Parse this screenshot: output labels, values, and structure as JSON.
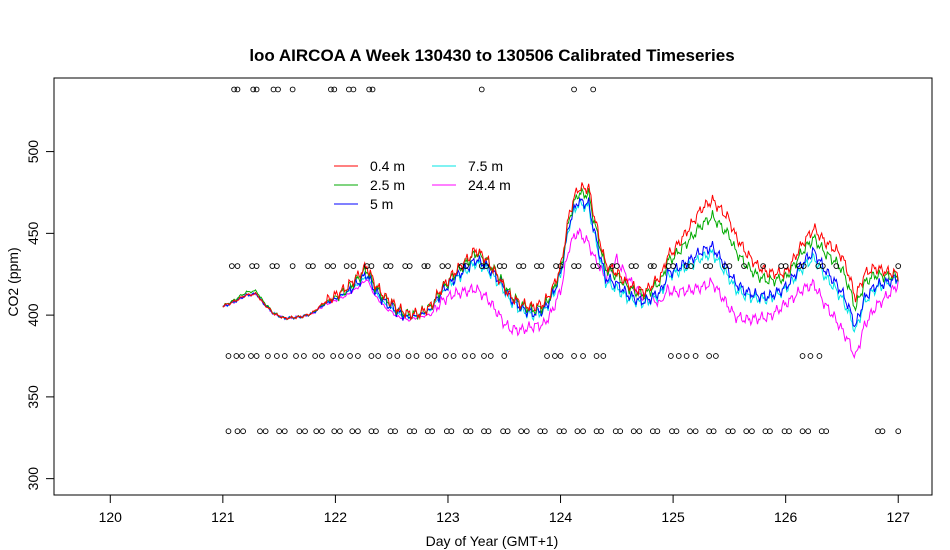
{
  "chart_data": {
    "type": "line",
    "title": "loo AIRCOA A  Week 130430 to 130506  Calibrated Timeseries",
    "xlabel": "Day of Year (GMT+1)",
    "ylabel": "CO2 (ppm)",
    "xlim": [
      119.5,
      127.3
    ],
    "ylim": [
      290,
      545
    ],
    "x_ticks": [
      120,
      121,
      122,
      123,
      124,
      125,
      126,
      127
    ],
    "y_ticks": [
      300,
      350,
      400,
      450,
      500
    ],
    "grid": false,
    "legend": {
      "placement": "top-center",
      "columns": 2,
      "entries": [
        {
          "label": "0.4 m",
          "color": "#ff0000"
        },
        {
          "label": "2.5 m",
          "color": "#00aa00"
        },
        {
          "label": "5 m",
          "color": "#0000ff"
        },
        {
          "label": "7.5 m",
          "color": "#00e5e5"
        },
        {
          "label": "24.4 m",
          "color": "#ff00ff"
        }
      ]
    },
    "base_series": {
      "x": [
        121.0,
        121.1,
        121.2,
        121.3,
        121.35,
        121.45,
        121.55,
        121.7,
        121.8,
        121.9,
        122.0,
        122.1,
        122.2,
        122.28,
        122.35,
        122.45,
        122.5,
        122.55,
        122.65,
        122.75,
        122.85,
        122.95,
        123.05,
        123.15,
        123.25,
        123.35,
        123.45,
        123.55,
        123.65,
        123.75,
        123.85,
        123.92,
        124.0,
        124.08,
        124.15,
        124.25,
        124.3,
        124.4,
        124.5,
        124.6,
        124.7,
        124.8,
        124.9,
        124.95,
        125.05,
        125.15,
        125.25,
        125.35,
        125.45,
        125.55,
        125.65,
        125.75,
        125.85,
        125.95,
        126.05,
        126.15,
        126.25,
        126.35,
        126.45,
        126.55,
        126.62,
        126.7,
        126.8,
        126.9,
        127.0
      ],
      "y": [
        405,
        408,
        412,
        413,
        408,
        401,
        398,
        399,
        401,
        406,
        409,
        412,
        417,
        422,
        412,
        404,
        402,
        399,
        397,
        399,
        402,
        412,
        418,
        422,
        426,
        421,
        412,
        402,
        398,
        397,
        399,
        407,
        421,
        451,
        462,
        458,
        440,
        410,
        404,
        401,
        401,
        404,
        408,
        418,
        420,
        422,
        425,
        427,
        416,
        405,
        402,
        402,
        403,
        408,
        414,
        421,
        425,
        412,
        402,
        390,
        378,
        397,
        408,
        414,
        421
      ]
    },
    "series": [
      {
        "name": "0.4 m",
        "color": "#ff0000",
        "bumps": [
          [
            0.5,
            0,
            0,
            0
          ],
          [
            3,
            8,
            6,
            2
          ],
          [
            6,
            14,
            10,
            8
          ],
          [
            8,
            20,
            22,
            12
          ],
          [
            20,
            40,
            48,
            28
          ],
          [
            15,
            28,
            40,
            25
          ],
          [
            4,
            12,
            40,
            22
          ],
          [
            15,
            25,
            30,
            30
          ]
        ]
      },
      {
        "name": "2.5 m",
        "color": "#00aa00",
        "bumps": [
          [
            0.5,
            2,
            0,
            0
          ],
          [
            2,
            6,
            5,
            2
          ],
          [
            5,
            12,
            12,
            6
          ],
          [
            6,
            16,
            20,
            10
          ],
          [
            16,
            30,
            38,
            22
          ],
          [
            12,
            22,
            32,
            20
          ],
          [
            3,
            10,
            30,
            18
          ],
          [
            10,
            20,
            25,
            25
          ]
        ]
      },
      {
        "name": "5 m",
        "color": "#0000ff",
        "bumps": [
          [
            0,
            0,
            0,
            0
          ],
          [
            1,
            3,
            3,
            1
          ],
          [
            3,
            8,
            10,
            4
          ],
          [
            4,
            10,
            15,
            6
          ],
          [
            8,
            14,
            16,
            10
          ],
          [
            6,
            14,
            18,
            12
          ],
          [
            2,
            6,
            18,
            12
          ],
          [
            5,
            10,
            12,
            12
          ]
        ]
      },
      {
        "name": "7.5 m",
        "color": "#00e5e5",
        "bumps": [
          [
            0,
            0,
            0,
            0
          ],
          [
            1,
            2,
            2,
            1
          ],
          [
            2,
            6,
            8,
            3
          ],
          [
            3,
            8,
            12,
            5
          ],
          [
            6,
            10,
            12,
            8
          ],
          [
            5,
            10,
            14,
            10
          ],
          [
            2,
            5,
            14,
            10
          ],
          [
            4,
            8,
            10,
            10
          ]
        ]
      },
      {
        "name": "24.4 m",
        "color": "#ff00ff",
        "bumps": [
          [
            0,
            0,
            0,
            0
          ],
          [
            0,
            0,
            0,
            0
          ],
          [
            -4,
            -10,
            -12,
            -4
          ],
          [
            -6,
            -14,
            30,
            8
          ],
          [
            -5,
            -8,
            -6,
            -4
          ],
          [
            -4,
            -6,
            -5,
            -3
          ],
          [
            -2,
            -4,
            -6,
            -3
          ],
          [
            -2,
            -3,
            -2,
            -2
          ]
        ]
      }
    ],
    "flag_points": {
      "y538": [
        121.1,
        121.13,
        121.27,
        121.3,
        121.45,
        121.49,
        121.62,
        121.96,
        121.99,
        122.12,
        122.16,
        122.3,
        122.33,
        123.3,
        124.12,
        124.29
      ],
      "y430": [
        121.08,
        121.13,
        121.26,
        121.3,
        121.44,
        121.48,
        121.62,
        121.76,
        121.8,
        121.93,
        121.98,
        122.1,
        122.16,
        122.28,
        122.32,
        122.45,
        122.49,
        122.62,
        122.66,
        122.79,
        122.82,
        122.95,
        123.0,
        123.12,
        123.16,
        123.3,
        123.34,
        123.46,
        123.5,
        123.63,
        123.67,
        123.79,
        123.83,
        123.96,
        124.0,
        124.12,
        124.16,
        124.29,
        124.33,
        124.46,
        124.5,
        124.63,
        124.67,
        124.8,
        124.83,
        124.96,
        125.0,
        125.12,
        125.16,
        125.29,
        125.33,
        125.46,
        125.5,
        125.63,
        125.8,
        125.96,
        126.0,
        126.12,
        126.16,
        126.29,
        126.33,
        126.45,
        127.0
      ],
      "y375": [
        121.05,
        121.12,
        121.17,
        121.25,
        121.3,
        121.4,
        121.48,
        121.55,
        121.65,
        121.72,
        121.82,
        121.88,
        121.98,
        122.05,
        122.13,
        122.2,
        122.32,
        122.38,
        122.48,
        122.55,
        122.65,
        122.72,
        122.82,
        122.88,
        122.98,
        123.05,
        123.15,
        123.22,
        123.32,
        123.38,
        123.5,
        123.88,
        123.95,
        124.0,
        124.12,
        124.2,
        124.32,
        124.38,
        124.98,
        125.05,
        125.12,
        125.2,
        125.32,
        125.38,
        126.15,
        126.22,
        126.3
      ],
      "y330": [
        121.05,
        121.13,
        121.18,
        121.33,
        121.38,
        121.5,
        121.55,
        121.68,
        121.73,
        121.83,
        121.88,
        121.99,
        122.04,
        122.15,
        122.2,
        122.32,
        122.36,
        122.49,
        122.53,
        122.66,
        122.7,
        122.82,
        122.86,
        122.99,
        123.03,
        123.16,
        123.2,
        123.32,
        123.36,
        123.49,
        123.53,
        123.65,
        123.7,
        123.82,
        123.86,
        123.99,
        124.03,
        124.15,
        124.2,
        124.32,
        124.36,
        124.49,
        124.53,
        124.65,
        124.7,
        124.82,
        124.86,
        124.99,
        125.03,
        125.15,
        125.2,
        125.32,
        125.36,
        125.49,
        125.53,
        125.65,
        125.7,
        125.82,
        125.86,
        125.99,
        126.03,
        126.15,
        126.2,
        126.32,
        126.36,
        126.82,
        126.86,
        127.0
      ]
    }
  }
}
